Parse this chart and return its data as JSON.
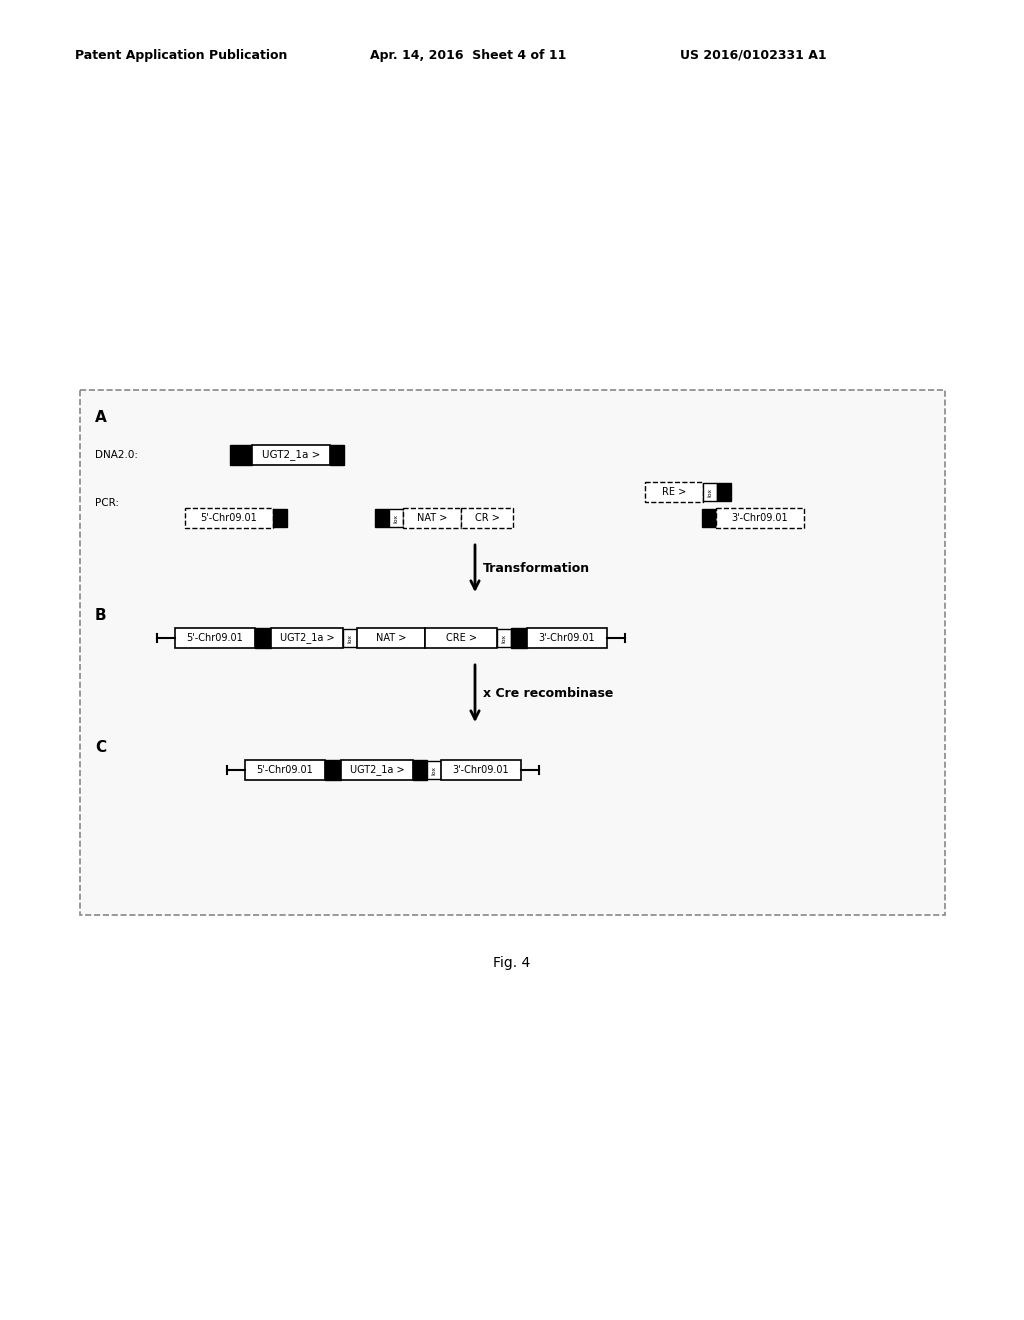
{
  "header_left": "Patent Application Publication",
  "header_mid": "Apr. 14, 2016  Sheet 4 of 11",
  "header_right": "US 2016/0102331 A1",
  "fig_label": "Fig. 4",
  "bg_color": "#ffffff",
  "panel_bg": "#f8f8f8",
  "panel_border": "#888888",
  "section_A_label": "A",
  "section_B_label": "B",
  "section_C_label": "C",
  "dna2_label": "DNA2.0:",
  "pcr_label": "PCR:",
  "transformation_label": "Transformation",
  "cre_label": "x Cre recombinase"
}
